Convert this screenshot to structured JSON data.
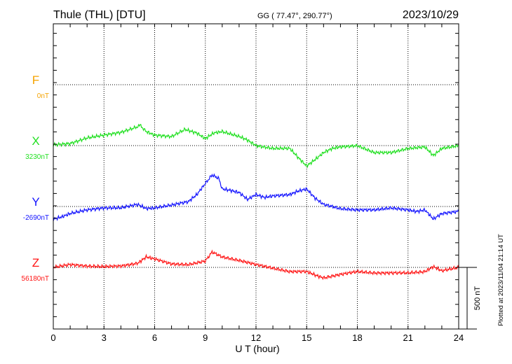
{
  "header": {
    "station": "Thule (THL)  [DTU]",
    "coords": "GG ( 77.47°, 290.77°)",
    "date": "2023/10/29"
  },
  "footer": {
    "plotted": "Plotted at 2023/11/04 21:14 UT",
    "scale_label": "500 nT"
  },
  "chart_data": {
    "type": "line",
    "title": "Thule (THL)  [DTU]",
    "xlabel": "U T (hour)",
    "xlim": [
      0,
      24
    ],
    "xticks": [
      "0",
      "3",
      "6",
      "9",
      "12",
      "15",
      "18",
      "21",
      "24"
    ],
    "scale_nT": 500,
    "grid": true,
    "series": [
      {
        "name": "F",
        "baseline_label": "0nT",
        "baseline": 0,
        "color": "#f5a300",
        "hours": [],
        "values": []
      },
      {
        "name": "X",
        "baseline_label": "3230nT",
        "baseline": 3230,
        "color": "#22e022",
        "hours": [
          0,
          1,
          2,
          3,
          4,
          5,
          5.1,
          5.5,
          6,
          7,
          7.8,
          8.5,
          9,
          9.5,
          10,
          11,
          11.5,
          12,
          13,
          14,
          14.5,
          15,
          15.5,
          16,
          16.5,
          17,
          18,
          19,
          20,
          21,
          22,
          22.5,
          23,
          24
        ],
        "values": [
          3236,
          3247,
          3292,
          3315,
          3338,
          3383,
          3400,
          3344,
          3315,
          3304,
          3361,
          3332,
          3287,
          3332,
          3344,
          3304,
          3275,
          3230,
          3207,
          3207,
          3133,
          3065,
          3116,
          3173,
          3207,
          3219,
          3230,
          3173,
          3173,
          3207,
          3219,
          3150,
          3207,
          3230
        ]
      },
      {
        "name": "Y",
        "baseline_label": "-2690nT",
        "baseline": -2690,
        "color": "#1414ff",
        "hours": [
          0,
          0.5,
          1,
          2,
          3,
          4,
          5,
          5.5,
          6,
          7,
          8,
          8.5,
          9,
          9.4,
          9.8,
          10,
          10.5,
          11,
          11.5,
          12,
          12.5,
          13,
          14,
          14.5,
          15,
          15.5,
          16,
          17,
          18,
          19,
          20,
          21,
          21.5,
          22,
          22.5,
          23,
          24
        ],
        "values": [
          -2792,
          -2775,
          -2747,
          -2718,
          -2701,
          -2701,
          -2673,
          -2707,
          -2701,
          -2679,
          -2650,
          -2593,
          -2503,
          -2434,
          -2463,
          -2548,
          -2559,
          -2576,
          -2633,
          -2593,
          -2616,
          -2605,
          -2593,
          -2565,
          -2548,
          -2622,
          -2673,
          -2707,
          -2718,
          -2718,
          -2701,
          -2718,
          -2730,
          -2718,
          -2792,
          -2747,
          -2730
        ]
      },
      {
        "name": "Z",
        "baseline_label": "56180nT",
        "baseline": 56180,
        "color": "#ff1414",
        "hours": [
          0,
          1,
          2,
          3,
          4,
          5,
          5.5,
          6,
          7,
          8,
          9,
          9.4,
          10,
          11,
          12,
          13,
          14,
          15,
          15.5,
          16,
          17,
          18,
          19,
          20,
          21,
          22,
          22.5,
          23,
          24
        ],
        "values": [
          56180,
          56203,
          56191,
          56186,
          56191,
          56214,
          56265,
          56248,
          56208,
          56203,
          56231,
          56305,
          56265,
          56237,
          56203,
          56174,
          56146,
          56146,
          56118,
          56095,
          56123,
          56146,
          56135,
          56135,
          56135,
          56146,
          56186,
          56152,
          56180
        ]
      }
    ]
  }
}
